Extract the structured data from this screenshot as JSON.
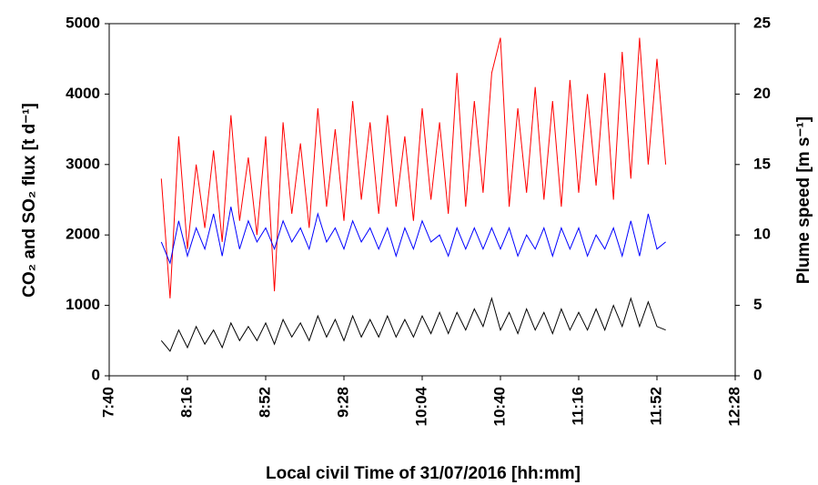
{
  "chart_data": {
    "type": "line",
    "x_label": "Local civil Time of 31/07/2016 [hh:mm]",
    "y_label": "CO₂ and SO₂ flux [t d⁻¹]",
    "y2_label": "Plume speed [m s⁻¹]",
    "xlim": [
      "7:40",
      "12:28"
    ],
    "xticks": [
      "7:40",
      "8:16",
      "8:52",
      "9:28",
      "10:04",
      "10:40",
      "11:16",
      "11:52",
      "12:28"
    ],
    "ylim": [
      0,
      5000
    ],
    "yticks": [
      0,
      1000,
      2000,
      3000,
      4000,
      5000
    ],
    "y2lim": [
      0,
      25
    ],
    "y2ticks": [
      0,
      5,
      10,
      15,
      20,
      25
    ],
    "x": [
      "8:04",
      "8:08",
      "8:12",
      "8:16",
      "8:20",
      "8:24",
      "8:28",
      "8:32",
      "8:36",
      "8:40",
      "8:44",
      "8:48",
      "8:52",
      "8:56",
      "9:00",
      "9:04",
      "9:08",
      "9:12",
      "9:16",
      "9:20",
      "9:24",
      "9:28",
      "9:32",
      "9:36",
      "9:40",
      "9:44",
      "9:48",
      "9:52",
      "9:56",
      "10:00",
      "10:04",
      "10:08",
      "10:12",
      "10:16",
      "10:20",
      "10:24",
      "10:28",
      "10:32",
      "10:36",
      "10:40",
      "10:44",
      "10:48",
      "10:52",
      "10:56",
      "11:00",
      "11:04",
      "11:08",
      "11:12",
      "11:16",
      "11:20",
      "11:24",
      "11:28",
      "11:32",
      "11:36",
      "11:40",
      "11:44",
      "11:48",
      "11:52",
      "11:56"
    ],
    "series": [
      {
        "color": "#ff0000",
        "values": [
          2800,
          1100,
          3400,
          1800,
          3000,
          2100,
          3200,
          1900,
          3700,
          2200,
          3100,
          2000,
          3400,
          1200,
          3600,
          2300,
          3300,
          2100,
          3800,
          2400,
          3500,
          2200,
          3900,
          2500,
          3600,
          2300,
          3700,
          2400,
          3400,
          2200,
          3800,
          2500,
          3600,
          2300,
          4300,
          2400,
          3900,
          2600,
          4300,
          4800,
          2400,
          3800,
          2600,
          4100,
          2500,
          3900,
          2400,
          4200,
          2600,
          4000,
          2700,
          4300,
          2500,
          4600,
          2800,
          4800,
          3000,
          4500,
          3000
        ]
      },
      {
        "color": "#0000ff",
        "axis": "y2",
        "values": [
          9.5,
          8,
          11,
          8.5,
          10.5,
          9,
          11.5,
          8.5,
          12,
          9,
          11,
          9.5,
          10.5,
          9,
          11,
          9.5,
          10.5,
          9,
          11.5,
          9.5,
          10.5,
          9,
          11,
          9.5,
          10.5,
          9,
          10.5,
          8.5,
          10.5,
          9,
          11,
          9.5,
          10,
          8.5,
          10.5,
          9,
          10.5,
          9,
          10.5,
          9,
          10.5,
          8.5,
          10,
          9,
          10.5,
          8.5,
          10.5,
          9,
          10.5,
          8.5,
          10,
          9,
          10.5,
          8.5,
          11,
          8.5,
          11.5,
          9,
          9.5
        ]
      },
      {
        "color": "#000000",
        "values": [
          500,
          350,
          650,
          400,
          700,
          450,
          650,
          400,
          750,
          500,
          700,
          500,
          750,
          450,
          800,
          550,
          750,
          500,
          850,
          550,
          800,
          500,
          850,
          550,
          800,
          550,
          850,
          550,
          800,
          550,
          850,
          600,
          900,
          600,
          900,
          650,
          950,
          700,
          1100,
          650,
          900,
          600,
          950,
          650,
          900,
          600,
          950,
          650,
          900,
          650,
          950,
          650,
          1000,
          700,
          1100,
          700,
          1050,
          700,
          650
        ]
      }
    ]
  }
}
